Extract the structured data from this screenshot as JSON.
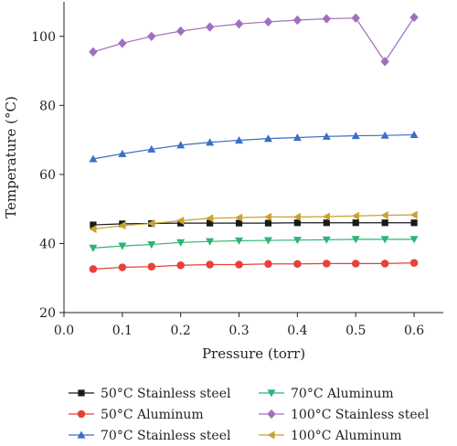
{
  "chart_data": {
    "type": "line",
    "title": "",
    "xlabel": "Pressure (torr)",
    "ylabel": "Temperature (°C)",
    "xlim": [
      0.0,
      0.65
    ],
    "ylim": [
      20,
      110
    ],
    "x_ticks": [
      "0.0",
      "0.1",
      "0.2",
      "0.3",
      "0.4",
      "0.5",
      "0.6"
    ],
    "y_ticks": [
      "20",
      "40",
      "60",
      "80",
      "100"
    ],
    "x_tick_values": [
      0.0,
      0.1,
      0.2,
      0.3,
      0.4,
      0.5,
      0.6
    ],
    "y_tick_values": [
      20,
      40,
      60,
      80,
      100
    ],
    "grid": false,
    "legend_placement": "bottom",
    "x": [
      0.05,
      0.1,
      0.15,
      0.2,
      0.25,
      0.3,
      0.35,
      0.4,
      0.45,
      0.5,
      0.55,
      0.6
    ],
    "series": [
      {
        "name": "50°C Stainless steel",
        "color": "#1a1a1a",
        "marker": "square",
        "values": [
          45.4,
          45.7,
          45.8,
          45.9,
          45.9,
          45.9,
          45.9,
          46.0,
          46.0,
          46.0,
          46.0,
          46.0
        ]
      },
      {
        "name": "50°C Aluminum",
        "color": "#e8413a",
        "marker": "circle",
        "values": [
          32.6,
          33.1,
          33.3,
          33.7,
          33.9,
          33.9,
          34.1,
          34.1,
          34.2,
          34.2,
          34.2,
          34.4
        ]
      },
      {
        "name": "70°C Stainless steel",
        "color": "#3a6fc4",
        "marker": "triangle-up",
        "values": [
          64.5,
          66.0,
          67.3,
          68.5,
          69.3,
          69.9,
          70.4,
          70.7,
          71.0,
          71.2,
          71.3,
          71.5
        ]
      },
      {
        "name": "70°C Aluminum",
        "color": "#2bb573",
        "marker": "triangle-down",
        "values": [
          38.7,
          39.3,
          39.7,
          40.3,
          40.6,
          40.8,
          40.9,
          41.0,
          41.1,
          41.2,
          41.2,
          41.2
        ]
      },
      {
        "name": "100°C Stainless steel",
        "color": "#a06fc0",
        "marker": "diamond",
        "values": [
          95.5,
          98.0,
          100.0,
          101.5,
          102.7,
          103.6,
          104.2,
          104.7,
          105.1,
          105.3,
          92.7,
          105.5
        ]
      },
      {
        "name": "100°C Aluminum",
        "color": "#c9a22e",
        "marker": "triangle-left",
        "values": [
          44.2,
          45.2,
          45.8,
          46.6,
          47.3,
          47.5,
          47.7,
          47.7,
          47.8,
          48.0,
          48.2,
          48.3
        ]
      }
    ]
  }
}
